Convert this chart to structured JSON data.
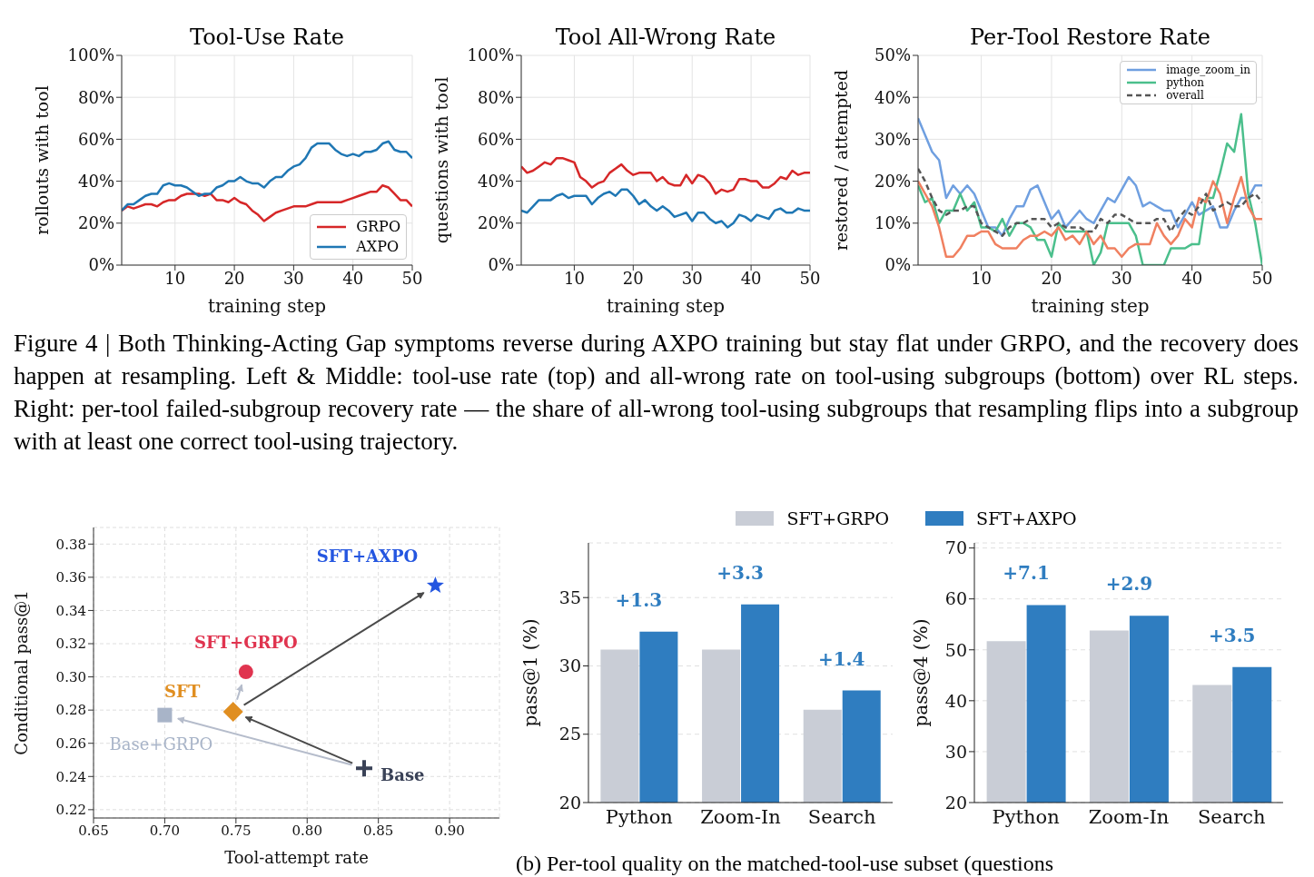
{
  "chart_data": [
    {
      "type": "line",
      "title": "Tool-Use Rate",
      "xlabel": "training step",
      "ylabel": "rollouts with tool",
      "x": [
        1,
        2,
        3,
        4,
        5,
        6,
        7,
        8,
        9,
        10,
        11,
        12,
        13,
        14,
        15,
        16,
        17,
        18,
        19,
        20,
        21,
        22,
        23,
        24,
        25,
        26,
        27,
        28,
        29,
        30,
        31,
        32,
        33,
        34,
        35,
        36,
        37,
        38,
        39,
        40,
        41,
        42,
        43,
        44,
        45,
        46,
        47,
        48,
        49,
        50
      ],
      "xlim": [
        1,
        50
      ],
      "xticks": [
        10,
        20,
        30,
        40,
        50
      ],
      "ylim": [
        0,
        100
      ],
      "yticks": [
        {
          "value": 0,
          "label": "0%"
        },
        {
          "value": 20,
          "label": "20%"
        },
        {
          "value": 40,
          "label": "40%"
        },
        {
          "value": 60,
          "label": "60%"
        },
        {
          "value": 80,
          "label": "80%"
        },
        {
          "value": 100,
          "label": "100%"
        }
      ],
      "grid": true,
      "legend": "bottom right",
      "annotations": [
        "Figure 4 | Both Thinking-Acting Gap symptoms reverse during AXPO training but stay flat under GRPO, and the recovery does happen at resampling. Left & Middle: tool-use rate (top) and all-wrong rate on tool-using subgroups (bottom) over RL steps. Right: per-tool failed-subgroup recovery rate — the share of all-wrong tool-using subgroups that resampling flips into a subgroup with at least one correct tool-using trajectory."
      ],
      "series": [
        {
          "name": "GRPO",
          "color": "#d62728",
          "values": [
            26,
            28,
            27,
            28,
            29,
            29,
            28,
            30,
            31,
            31,
            33,
            34,
            34,
            34,
            33,
            34,
            31,
            31,
            30,
            32,
            30,
            29,
            26,
            24,
            21,
            23,
            25,
            26,
            27,
            28,
            28,
            28,
            29,
            30,
            30,
            30,
            30,
            30,
            31,
            32,
            33,
            34,
            35,
            35,
            38,
            37,
            34,
            31,
            31,
            28
          ]
        },
        {
          "name": "AXPO",
          "color": "#1f77b4",
          "values": [
            26,
            29,
            29,
            31,
            33,
            34,
            34,
            38,
            39,
            38,
            38,
            37,
            35,
            33,
            34,
            34,
            37,
            38,
            40,
            40,
            42,
            40,
            39,
            39,
            37,
            40,
            42,
            42,
            45,
            47,
            48,
            51,
            56,
            58,
            58,
            58,
            55,
            53,
            52,
            53,
            52,
            54,
            54,
            55,
            58,
            59,
            55,
            54,
            54,
            51
          ]
        }
      ]
    },
    {
      "type": "line",
      "title": "Tool All-Wrong Rate",
      "xlabel": "training step",
      "ylabel": "questions with tool",
      "x": [
        1,
        2,
        3,
        4,
        5,
        6,
        7,
        8,
        9,
        10,
        11,
        12,
        13,
        14,
        15,
        16,
        17,
        18,
        19,
        20,
        21,
        22,
        23,
        24,
        25,
        26,
        27,
        28,
        29,
        30,
        31,
        32,
        33,
        34,
        35,
        36,
        37,
        38,
        39,
        40,
        41,
        42,
        43,
        44,
        45,
        46,
        47,
        48,
        49,
        50
      ],
      "xlim": [
        1,
        50
      ],
      "xticks": [
        10,
        20,
        30,
        40,
        50
      ],
      "ylim": [
        0,
        100
      ],
      "yticks": [
        {
          "value": 0,
          "label": "0%"
        },
        {
          "value": 20,
          "label": "20%"
        },
        {
          "value": 40,
          "label": "40%"
        },
        {
          "value": 60,
          "label": "60%"
        },
        {
          "value": 80,
          "label": "80%"
        },
        {
          "value": 100,
          "label": "100%"
        }
      ],
      "grid": true,
      "series": [
        {
          "color": "#d62728",
          "values": [
            47,
            44,
            45,
            47,
            49,
            48,
            51,
            51,
            50,
            49,
            42,
            40,
            37,
            39,
            40,
            44,
            46,
            48,
            45,
            43,
            44,
            44,
            44,
            40,
            42,
            39,
            38,
            38,
            43,
            39,
            43,
            42,
            39,
            34,
            36,
            35,
            36,
            41,
            41,
            40,
            40,
            37,
            37,
            39,
            42,
            41,
            45,
            43,
            44,
            44
          ]
        },
        {
          "color": "#1f77b4",
          "values": [
            26,
            25,
            28,
            31,
            31,
            31,
            33,
            34,
            32,
            33,
            33,
            33,
            29,
            32,
            34,
            35,
            33,
            36,
            36,
            33,
            29,
            31,
            28,
            26,
            28,
            26,
            23,
            24,
            25,
            21,
            25,
            25,
            22,
            20,
            21,
            18,
            20,
            24,
            23,
            21,
            24,
            23,
            22,
            26,
            27,
            25,
            25,
            27,
            26,
            26
          ]
        }
      ]
    },
    {
      "type": "line",
      "title": "Per-Tool Restore Rate",
      "xlabel": "training step",
      "ylabel": "restored / attempted",
      "x": [
        1,
        2,
        3,
        4,
        5,
        6,
        7,
        8,
        9,
        10,
        11,
        12,
        13,
        14,
        15,
        16,
        17,
        18,
        19,
        20,
        21,
        22,
        23,
        24,
        25,
        26,
        27,
        28,
        29,
        30,
        31,
        32,
        33,
        34,
        35,
        36,
        37,
        38,
        39,
        40,
        41,
        42,
        43,
        44,
        45,
        46,
        47,
        48,
        49,
        50
      ],
      "xlim": [
        1,
        50
      ],
      "xticks": [
        10,
        20,
        30,
        40,
        50
      ],
      "ylim": [
        0,
        50
      ],
      "yticks": [
        {
          "value": 0,
          "label": "0%"
        },
        {
          "value": 10,
          "label": "10%"
        },
        {
          "value": 20,
          "label": "20%"
        },
        {
          "value": 30,
          "label": "30%"
        },
        {
          "value": 40,
          "label": "40%"
        },
        {
          "value": 50,
          "label": "50%"
        }
      ],
      "grid": true,
      "legend": "top right",
      "series": [
        {
          "name": "image_zoom_in",
          "color": "#6f9fe0",
          "values": [
            35,
            31,
            27,
            25,
            16,
            19,
            17,
            19,
            17,
            13,
            9,
            9,
            7,
            11,
            14,
            14,
            18,
            19,
            15,
            11,
            13,
            9,
            11,
            13,
            11,
            10,
            13,
            16,
            15,
            18,
            21,
            19,
            14,
            15,
            14,
            13,
            13,
            9,
            12,
            15,
            12,
            13,
            14,
            9,
            9,
            13,
            16,
            16,
            19,
            19
          ]
        },
        {
          "name": "python",
          "color": "#4bbf8c",
          "values": [
            19,
            15,
            16,
            10,
            13,
            13,
            17,
            13,
            15,
            9,
            9,
            8,
            11,
            7,
            10,
            10,
            9,
            6,
            6,
            2,
            10,
            8,
            8,
            8,
            8,
            0,
            3,
            10,
            10,
            10,
            10,
            7,
            0,
            0,
            0,
            0,
            4,
            4,
            4,
            5,
            5,
            16,
            16,
            22,
            29,
            27,
            36,
            17,
            10,
            0
          ]
        },
        {
          "color": "#f08060",
          "values": [
            20,
            17,
            14,
            9,
            2,
            2,
            4,
            7,
            7,
            8,
            8,
            5,
            4,
            4,
            4,
            6,
            7,
            7,
            8,
            7,
            9,
            6,
            7,
            5,
            8,
            5,
            7,
            4,
            4,
            2,
            4,
            5,
            5,
            5,
            10,
            7,
            5,
            7,
            11,
            9,
            16,
            15,
            20,
            17,
            10,
            16,
            21,
            14,
            11,
            11
          ]
        },
        {
          "name": "overall",
          "color": "#555555",
          "line_style": "dashed",
          "values": [
            23,
            20,
            16,
            13,
            12,
            13,
            13,
            14,
            14,
            10,
            9,
            8,
            7,
            9,
            10,
            10,
            11,
            11,
            11,
            9,
            10,
            9,
            9,
            9,
            8,
            8,
            11,
            10,
            12,
            12,
            11,
            10,
            10,
            10,
            11,
            11,
            8,
            11,
            13,
            12,
            14,
            17,
            13,
            14,
            15,
            14,
            14,
            16,
            17,
            15
          ]
        }
      ]
    },
    {
      "type": "scatter",
      "xlabel": "Tool-attempt rate",
      "ylabel": "Conditional pass@1",
      "xlim": [
        0.65,
        0.935
      ],
      "xticks": [
        0.65,
        {
          "value": 0.7,
          "label": "0.70"
        },
        0.75,
        {
          "value": 0.8,
          "label": "0.80"
        },
        0.85,
        {
          "value": 0.9,
          "label": "0.90"
        }
      ],
      "ylim": [
        0.215,
        0.39
      ],
      "yticks": [
        0.22,
        0.24,
        0.26,
        0.28,
        {
          "value": 0.3,
          "label": "0.30"
        },
        0.32,
        0.34,
        0.36,
        0.38
      ],
      "grid": true,
      "series": [
        {
          "name": "Base",
          "color": "#3a4257",
          "marker": "cross",
          "x": [
            0.84
          ],
          "values": [
            0.245
          ]
        },
        {
          "name": "Base+GRPO",
          "color": "#a8b4c8",
          "marker": "square",
          "x": [
            0.7
          ],
          "values": [
            0.277
          ]
        },
        {
          "name": "SFT",
          "color": "#e08e20",
          "marker": "diamond",
          "x": [
            0.748
          ],
          "values": [
            0.279
          ]
        },
        {
          "name": "SFT+GRPO",
          "color": "#e0344f",
          "marker": "circle",
          "x": [
            0.757
          ],
          "values": [
            0.303
          ]
        },
        {
          "name": "SFT+AXPO",
          "color": "#2456e0",
          "marker": "star",
          "x": [
            0.89
          ],
          "values": [
            0.355
          ]
        }
      ]
    },
    {
      "type": "bar",
      "ylabel": "pass@1 (%)",
      "categories": [
        "Python",
        "Zoom-In",
        "Search"
      ],
      "ylim": [
        20,
        39
      ],
      "yticks": [
        20,
        25,
        30,
        35
      ],
      "grid": "y",
      "legend": "top",
      "annotations": [
        "(b) Per-tool quality on the matched-tool-use subset (questions",
        {
          "text": "+1.3",
          "x": "Python",
          "y": 32.5
        },
        {
          "text": "+3.3",
          "x": "Zoom-In",
          "y": 34.5
        },
        {
          "text": "+1.4",
          "x": "Search",
          "y": 28.2
        }
      ],
      "series": [
        {
          "name": "SFT+GRPO",
          "color": "#c9cdd6",
          "values": [
            31.2,
            31.2,
            26.8
          ]
        },
        {
          "name": "SFT+AXPO",
          "color": "#2f7dc0",
          "values": [
            32.5,
            34.5,
            28.2
          ]
        }
      ]
    },
    {
      "type": "bar",
      "ylabel": "pass@4 (%)",
      "categories": [
        "Python",
        "Zoom-In",
        "Search"
      ],
      "ylim": [
        20,
        71
      ],
      "yticks": [
        20,
        30,
        40,
        50,
        60,
        70
      ],
      "grid": "y",
      "annotations": [
        {
          "text": "+7.1",
          "x": "Python",
          "y": 58.8
        },
        {
          "text": "+2.9",
          "x": "Zoom-In",
          "y": 56.7
        },
        {
          "text": "+3.5",
          "x": "Search",
          "y": 46.6
        }
      ],
      "series": [
        {
          "color": "#c9cdd6",
          "values": [
            51.7,
            53.8,
            43.1
          ]
        },
        {
          "color": "#2f7dc0",
          "values": [
            58.8,
            56.7,
            46.6
          ]
        }
      ]
    }
  ]
}
